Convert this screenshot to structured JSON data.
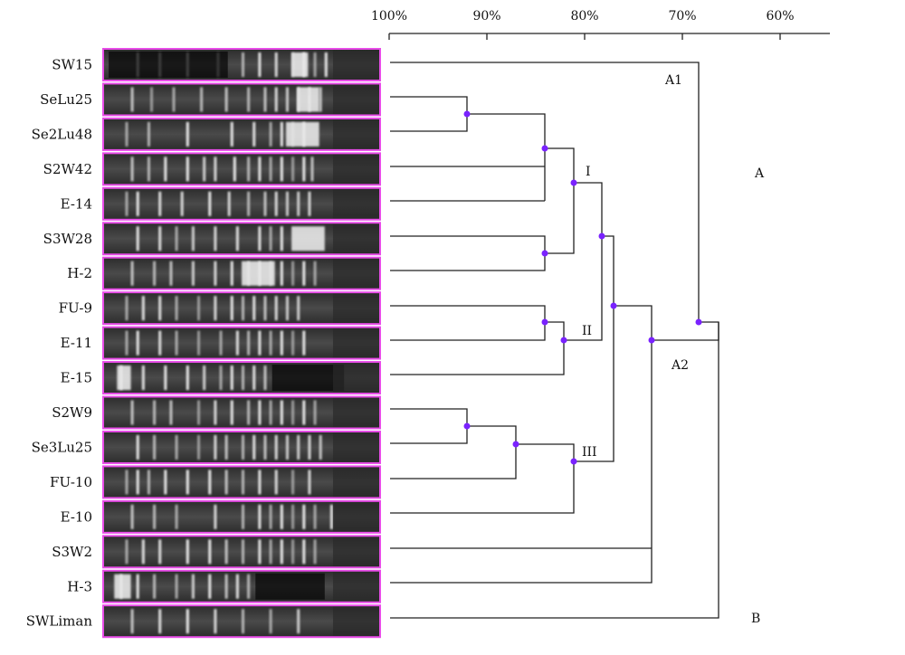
{
  "scale": {
    "ticks": [
      {
        "value": 100,
        "label": "100%"
      },
      {
        "value": 90,
        "label": "90%"
      },
      {
        "value": 80,
        "label": "80%"
      },
      {
        "value": 70,
        "label": "70%"
      },
      {
        "value": 60,
        "label": "60%"
      }
    ]
  },
  "samples": [
    {
      "name": "SW15",
      "bands": [
        0.12,
        0.2,
        0.3,
        0.41,
        0.5,
        0.56,
        0.62,
        0.68,
        0.72,
        0.76,
        0.8
      ],
      "bright": [
        0.68,
        0.74
      ],
      "dark": [
        [
          0.02,
          0.45
        ]
      ]
    },
    {
      "name": "SeLu25",
      "bands": [
        0.1,
        0.17,
        0.25,
        0.35,
        0.44,
        0.52,
        0.58,
        0.62,
        0.66,
        0.7,
        0.74,
        0.78
      ],
      "bright": [
        0.7,
        0.78
      ],
      "dark": []
    },
    {
      "name": "Se2Lu48",
      "bands": [
        0.08,
        0.16,
        0.3,
        0.46,
        0.54,
        0.6,
        0.64,
        0.68,
        0.72
      ],
      "bright": [
        0.66,
        0.78
      ],
      "dark": []
    },
    {
      "name": "S2W42",
      "bands": [
        0.1,
        0.16,
        0.22,
        0.3,
        0.36,
        0.4,
        0.47,
        0.52,
        0.56,
        0.6,
        0.64,
        0.68,
        0.72,
        0.75
      ],
      "bright": [],
      "dark": []
    },
    {
      "name": "E-14",
      "bands": [
        0.08,
        0.12,
        0.2,
        0.28,
        0.38,
        0.45,
        0.52,
        0.58,
        0.62,
        0.66,
        0.7,
        0.74
      ],
      "bright": [],
      "dark": []
    },
    {
      "name": "S3W28",
      "bands": [
        0.12,
        0.2,
        0.26,
        0.32,
        0.4,
        0.48,
        0.56,
        0.6,
        0.64
      ],
      "bright": [
        0.68,
        0.8
      ],
      "dark": []
    },
    {
      "name": "H-2",
      "bands": [
        0.1,
        0.18,
        0.24,
        0.32,
        0.4,
        0.46,
        0.52,
        0.56,
        0.6,
        0.64,
        0.68,
        0.72,
        0.76
      ],
      "bright": [
        0.5,
        0.62
      ],
      "dark": []
    },
    {
      "name": "FU-9",
      "bands": [
        0.08,
        0.14,
        0.2,
        0.26,
        0.34,
        0.4,
        0.46,
        0.5,
        0.54,
        0.58,
        0.62,
        0.66,
        0.7
      ],
      "bright": [],
      "dark": []
    },
    {
      "name": "E-11",
      "bands": [
        0.08,
        0.12,
        0.2,
        0.26,
        0.34,
        0.42,
        0.48,
        0.52,
        0.56,
        0.6,
        0.64,
        0.68,
        0.72
      ],
      "bright": [],
      "dark": []
    },
    {
      "name": "E-15",
      "bands": [
        0.06,
        0.14,
        0.22,
        0.3,
        0.36,
        0.42,
        0.46,
        0.5,
        0.54,
        0.58
      ],
      "bright": [
        0.05,
        0.1
      ],
      "dark": [
        [
          0.61,
          0.87
        ]
      ]
    },
    {
      "name": "S2W9",
      "bands": [
        0.1,
        0.18,
        0.24,
        0.34,
        0.4,
        0.46,
        0.52,
        0.56,
        0.6,
        0.64,
        0.68,
        0.72,
        0.76
      ],
      "bright": [],
      "dark": []
    },
    {
      "name": "Se3Lu25",
      "bands": [
        0.12,
        0.18,
        0.26,
        0.34,
        0.4,
        0.44,
        0.5,
        0.54,
        0.58,
        0.62,
        0.66,
        0.7,
        0.74,
        0.78
      ],
      "bright": [],
      "dark": []
    },
    {
      "name": "FU-10",
      "bands": [
        0.08,
        0.12,
        0.16,
        0.22,
        0.3,
        0.38,
        0.44,
        0.5,
        0.56,
        0.62,
        0.68,
        0.74
      ],
      "bright": [],
      "dark": []
    },
    {
      "name": "E-10",
      "bands": [
        0.1,
        0.18,
        0.26,
        0.4,
        0.5,
        0.56,
        0.6,
        0.64,
        0.68,
        0.72,
        0.76,
        0.82
      ],
      "bright": [],
      "dark": []
    },
    {
      "name": "S3W2",
      "bands": [
        0.08,
        0.14,
        0.2,
        0.3,
        0.38,
        0.44,
        0.5,
        0.56,
        0.6,
        0.64,
        0.68,
        0.72,
        0.76
      ],
      "bright": [],
      "dark": []
    },
    {
      "name": "H-3",
      "bands": [
        0.06,
        0.12,
        0.18,
        0.26,
        0.32,
        0.38,
        0.44,
        0.48,
        0.52
      ],
      "bright": [
        0.04,
        0.1
      ],
      "dark": [
        [
          0.55,
          0.8
        ]
      ]
    },
    {
      "name": "SWLiman",
      "bands": [
        0.1,
        0.2,
        0.3,
        0.4,
        0.5,
        0.6,
        0.7
      ],
      "bright": [],
      "dark": []
    }
  ],
  "clusters": [
    {
      "label": "A1"
    },
    {
      "label": "A"
    },
    {
      "label": "I"
    },
    {
      "label": "II"
    },
    {
      "label": "A2"
    },
    {
      "label": "III"
    },
    {
      "label": "B"
    }
  ],
  "colors": {
    "lane_frame": "#e84ce8",
    "node": "#7a22ff",
    "gel_bg": "#3a3a3a",
    "band": "#e8e8e8"
  }
}
